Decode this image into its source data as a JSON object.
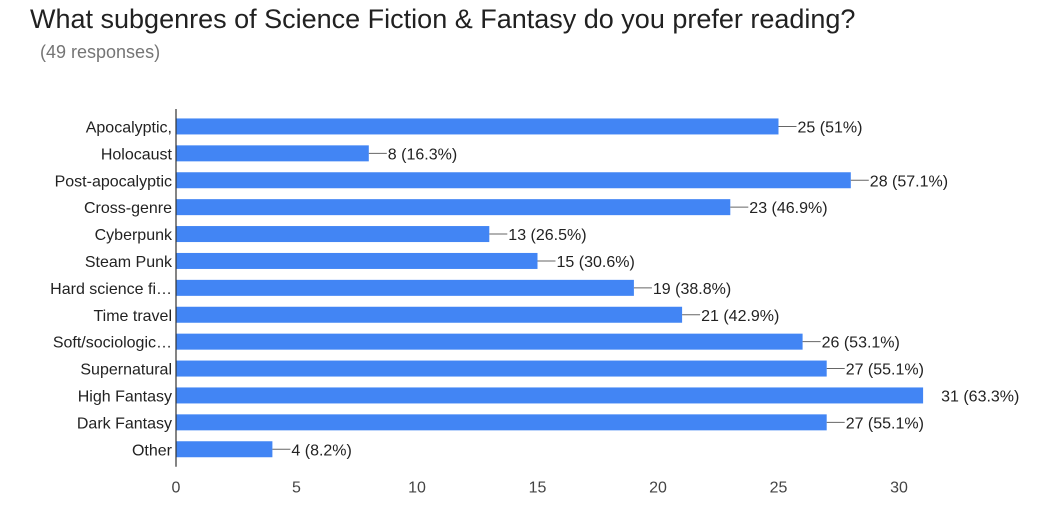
{
  "header": {
    "title": "What subgenres of Science Fiction & Fantasy do you prefer reading?",
    "subtitle": "(49 responses)"
  },
  "colors": {
    "bar": "#4285f4",
    "axis": "#333333",
    "leader": "#666666"
  },
  "chart_data": {
    "type": "bar",
    "orientation": "horizontal",
    "title": "What subgenres of Science Fiction & Fantasy do you prefer reading?",
    "subtitle": "(49 responses)",
    "categories": [
      "Apocalyptic,",
      "Holocaust",
      "Post-apocalyptic",
      "Cross-genre",
      "Cyberpunk",
      "Steam Punk",
      "Hard science fi…",
      "Time travel",
      "Soft/sociologic…",
      "Supernatural",
      "High Fantasy",
      "Dark Fantasy",
      "Other"
    ],
    "values": [
      25,
      8,
      28,
      23,
      13,
      15,
      19,
      21,
      26,
      27,
      31,
      27,
      4
    ],
    "value_labels": [
      "25 (51%)",
      "8 (16.3%)",
      "28 (57.1%)",
      "23 (46.9%)",
      "13 (26.5%)",
      "15 (30.6%)",
      "19 (38.8%)",
      "21 (42.9%)",
      "26 (53.1%)",
      "27 (55.1%)",
      "31 (63.3%)",
      "27 (55.1%)",
      "4 (8.2%)"
    ],
    "xticks": [
      0,
      5,
      10,
      15,
      20,
      25,
      30
    ],
    "xlim": [
      0,
      33
    ],
    "grid": false,
    "legend": "none"
  }
}
